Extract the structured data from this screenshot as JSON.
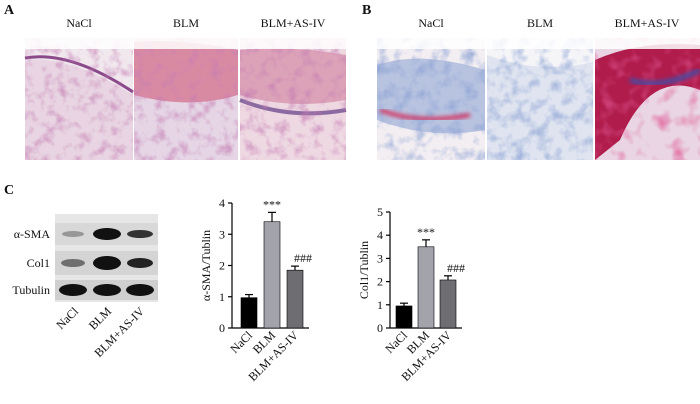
{
  "panels": {
    "A": {
      "label": "A",
      "images": [
        "NaCl",
        "BLM",
        "BLM+AS-IV"
      ]
    },
    "B": {
      "label": "B",
      "images": [
        "NaCl",
        "BLM",
        "BLM+AS-IV"
      ]
    },
    "C": {
      "label": "C",
      "blot": {
        "rows": [
          "α-SMA",
          "Col1",
          "Tubulin"
        ],
        "lanes": [
          "NaCl",
          "BLM",
          "BLM+AS-IV"
        ]
      }
    }
  },
  "chart_data": [
    {
      "type": "bar",
      "y_label": "α-SMA/Tublin",
      "categories": [
        "NaCl",
        "BLM",
        "BLM+AS-IV"
      ],
      "values": [
        0.97,
        3.4,
        1.85
      ],
      "errors": [
        0.1,
        0.3,
        0.13
      ],
      "significance": [
        null,
        "***",
        "###"
      ],
      "colors": [
        "#000000",
        "#a3a3ab",
        "#6e6e72"
      ],
      "ylim": [
        0,
        4
      ],
      "yticks": [
        0,
        1,
        2,
        3,
        4
      ]
    },
    {
      "type": "bar",
      "y_label": "Col1/Tublin",
      "categories": [
        "NaCl",
        "BLM",
        "BLM+AS-IV"
      ],
      "values": [
        0.95,
        3.5,
        2.07
      ],
      "errors": [
        0.12,
        0.3,
        0.18
      ],
      "significance": [
        null,
        "***",
        "###"
      ],
      "colors": [
        "#000000",
        "#a3a3ab",
        "#6e6e72"
      ],
      "ylim": [
        0,
        5
      ],
      "yticks": [
        0,
        1,
        2,
        3,
        4,
        5
      ]
    }
  ]
}
